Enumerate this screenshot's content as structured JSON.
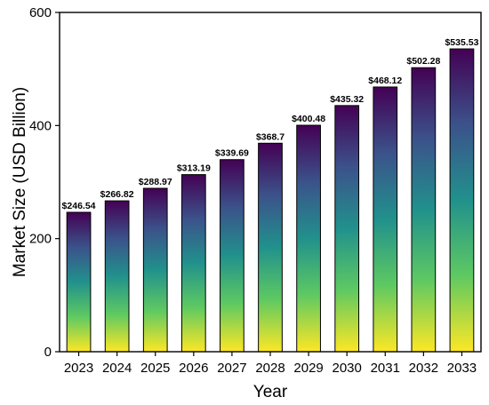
{
  "chart_data": {
    "type": "bar",
    "categories": [
      "2023",
      "2024",
      "2025",
      "2026",
      "2027",
      "2028",
      "2029",
      "2030",
      "2031",
      "2032",
      "2033"
    ],
    "values": [
      246.54,
      266.82,
      288.97,
      313.19,
      339.69,
      368.7,
      400.48,
      435.32,
      468.12,
      502.28,
      535.53
    ],
    "data_labels": [
      "$246.54",
      "$266.82",
      "$288.97",
      "$313.19",
      "$339.69",
      "$368.7",
      "$400.48",
      "$435.32",
      "$468.12",
      "$502.28",
      "$535.53"
    ],
    "xlabel": "Year",
    "ylabel": "Market Size (USD Billion)",
    "ylim": [
      0,
      600
    ],
    "yticks": [
      "0",
      "200",
      "400",
      "600"
    ],
    "grid": false,
    "colors": {
      "gradient_bottom": "#fde725",
      "gradient_low": "#5ec962",
      "gradient_mid": "#21918c",
      "gradient_high": "#3b528b",
      "gradient_top": "#440154"
    }
  }
}
